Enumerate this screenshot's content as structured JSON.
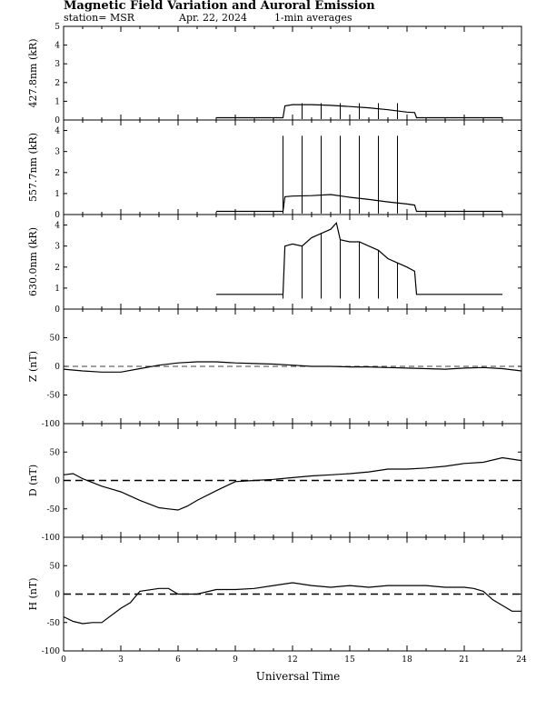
{
  "header": {
    "title": "Magnetic Field Variation and Auroral Emission",
    "station": "station= MSR",
    "date": "Apr. 22, 2024",
    "averaging": "1-min averages"
  },
  "chart_data": [
    {
      "type": "line",
      "ylabel": "427.8nm (kR)",
      "ylim": [
        0,
        5
      ],
      "yticks": [
        "0",
        "1",
        "2",
        "3",
        "4",
        "5"
      ],
      "x": [
        8,
        9,
        10,
        11,
        11.5,
        11.6,
        12,
        13,
        14,
        15,
        16,
        17,
        18,
        18.4,
        18.5,
        19,
        20,
        21,
        22,
        23
      ],
      "values": [
        0.12,
        0.12,
        0.12,
        0.12,
        0.12,
        0.75,
        0.82,
        0.82,
        0.78,
        0.72,
        0.65,
        0.55,
        0.42,
        0.4,
        0.12,
        0.12,
        0.12,
        0.12,
        0.12,
        0.12
      ],
      "spikes": [
        12.5,
        13.5,
        14.5,
        15.5,
        16.5,
        17.5
      ],
      "spike_top": 0.9,
      "baseline": null
    },
    {
      "type": "line",
      "ylabel": "557.7nm (kR)",
      "ylim": [
        0,
        4.5
      ],
      "yticks": [
        "0",
        "1",
        "2",
        "3",
        "4"
      ],
      "x": [
        8,
        9,
        10,
        11,
        11.5,
        11.6,
        12,
        13,
        14,
        15,
        16,
        17,
        18,
        18.4,
        18.5,
        19,
        20,
        21,
        22,
        23
      ],
      "values": [
        0.15,
        0.15,
        0.15,
        0.15,
        0.15,
        0.85,
        0.88,
        0.9,
        0.95,
        0.82,
        0.72,
        0.6,
        0.5,
        0.45,
        0.15,
        0.15,
        0.15,
        0.15,
        0.15,
        0.15
      ],
      "spikes": [
        11.5,
        12.5,
        13.5,
        14.5,
        15.5,
        16.5,
        17.5
      ],
      "spike_top": 3.75,
      "baseline": null
    },
    {
      "type": "line",
      "ylabel": "630.0nm (kR)",
      "ylim": [
        0,
        4.5
      ],
      "yticks": [
        "0",
        "1",
        "2",
        "3",
        "4"
      ],
      "x": [
        8,
        9,
        10,
        11,
        11.5,
        11.6,
        12,
        12.5,
        13,
        13.5,
        14,
        14.3,
        14.5,
        15,
        15.5,
        16,
        16.5,
        17,
        17.5,
        18,
        18.4,
        18.5,
        19,
        20,
        21,
        22,
        23
      ],
      "values": [
        0.7,
        0.7,
        0.7,
        0.7,
        0.7,
        3.0,
        3.1,
        3.0,
        3.4,
        3.6,
        3.8,
        4.1,
        3.3,
        3.2,
        3.2,
        3.0,
        2.8,
        2.4,
        2.2,
        2.0,
        1.8,
        0.7,
        0.7,
        0.7,
        0.7,
        0.7,
        0.7
      ],
      "spikes": [
        11.5,
        12.5,
        13.5,
        14.5,
        15.5,
        16.5,
        17.5
      ],
      "spike_top": null,
      "spike_bottom": 0.5,
      "baseline": null
    },
    {
      "type": "line",
      "ylabel": "Z (nT)",
      "ylim": [
        -100,
        100
      ],
      "yticks": [
        "-100",
        "-50",
        "0",
        "50"
      ],
      "x": [
        0,
        1,
        2,
        3,
        4,
        5,
        6,
        7,
        8,
        9,
        10,
        11,
        12,
        13,
        14,
        15,
        16,
        17,
        18,
        19,
        20,
        21,
        22,
        23,
        24
      ],
      "values": [
        -5,
        -8,
        -10,
        -10,
        -4,
        2,
        6,
        8,
        8,
        6,
        5,
        4,
        2,
        0,
        0,
        -1,
        -1,
        -2,
        -3,
        -4,
        -5,
        -3,
        -2,
        -4,
        -8
      ],
      "baseline": 0
    },
    {
      "type": "line",
      "ylabel": "D (nT)",
      "ylim": [
        -100,
        100
      ],
      "yticks": [
        "-100",
        "-50",
        "0",
        "50"
      ],
      "x": [
        0,
        0.5,
        1,
        2,
        3,
        4,
        5,
        5.5,
        6,
        6.5,
        7,
        8,
        9,
        10,
        11,
        12,
        13,
        14,
        15,
        16,
        17,
        18,
        19,
        20,
        21,
        22,
        23,
        24
      ],
      "values": [
        10,
        12,
        3,
        -10,
        -20,
        -35,
        -48,
        -50,
        -52,
        -45,
        -35,
        -18,
        -2,
        0,
        2,
        5,
        8,
        10,
        12,
        15,
        20,
        20,
        22,
        25,
        30,
        32,
        40,
        35
      ],
      "baseline": 0
    },
    {
      "type": "line",
      "ylabel": "H (nT)",
      "ylim": [
        -100,
        100
      ],
      "yticks": [
        "-100",
        "-50",
        "0",
        "50"
      ],
      "x": [
        0,
        0.5,
        1,
        1.5,
        2,
        3,
        3.5,
        4,
        5,
        5.5,
        6,
        7,
        8,
        9,
        10,
        11,
        12,
        13,
        14,
        15,
        16,
        17,
        18,
        19,
        20,
        21,
        21.5,
        22,
        22.5,
        23,
        23.5,
        24
      ],
      "values": [
        -40,
        -48,
        -52,
        -50,
        -50,
        -25,
        -15,
        5,
        10,
        10,
        0,
        0,
        8,
        8,
        10,
        15,
        20,
        15,
        12,
        15,
        12,
        15,
        15,
        15,
        12,
        12,
        10,
        5,
        -10,
        -20,
        -30,
        -30
      ],
      "baseline": 0
    }
  ],
  "x_axis": {
    "label": "Universal Time",
    "range": [
      0,
      24
    ],
    "ticks": [
      "0",
      "3",
      "6",
      "9",
      "12",
      "15",
      "18",
      "21",
      "24"
    ]
  }
}
